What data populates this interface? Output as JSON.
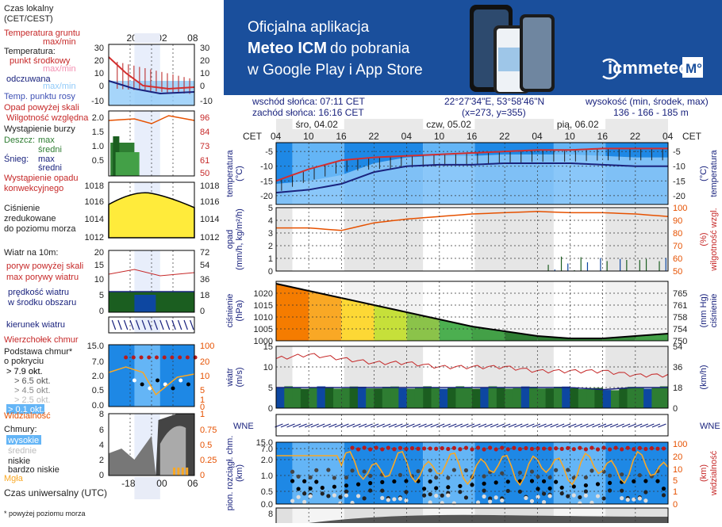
{
  "legend": {
    "time_local": "Czas lokalny",
    "time_local2": "(CET/CEST)",
    "ground_temp": "Temperatura gruntu",
    "ground_temp_maxmin": "max/min",
    "temperature": "Temperatura:",
    "dew_mid": "punkt środkowy",
    "maxmin": "max/min",
    "apparent": "odczuwana",
    "maxmin2": "max/min",
    "dew": "Temp. punktu rosy",
    "precip_above": "Opad powyżej skali",
    "humidity": "Wilgotność względna",
    "thunder": "Wystąpienie burzy",
    "rain": "Deszcz:",
    "rain_max": "max",
    "rain_mid": "średni",
    "snow": "Śnieg:",
    "snow_max": "max",
    "snow_mid": "średni",
    "precip_occ": "Wystąpienie opadu",
    "conv": "konwekcyjnego",
    "pressure1": "Ciśnienie",
    "pressure2": "zredukowane",
    "pressure3": "do poziomu morza",
    "wind10": "Wiatr na 10m:",
    "gust_above": "poryw powyżej skali",
    "gust_max": "max porywy wiatru",
    "wind_mean": "prędkość wiatru",
    "wind_mean2": "w środku obszaru",
    "wind_dir": "kierunek wiatru",
    "cloud_top": "Wierzchołek chmur",
    "cloud_base": "Podstawa chmur*",
    "cloud_base2": "o pokryciu",
    "okt79": "> 7.9 okt.",
    "okt65": "> 6.5 okt.",
    "okt45": "> 4.5 okt.",
    "okt25": "> 2.5 okt.",
    "okt01": "> 0.1 okt.",
    "visibility": "Widzialność",
    "clouds": "Chmury:",
    "high": "wysokie",
    "mid": "średnie",
    "low": "niskie",
    "very_low": "bardzo niskie",
    "fog": "Mgła",
    "utc": "Czas uniwersalny (UTC)",
    "footnote": "* powyżej poziomu morza",
    "ticks_top": [
      "20",
      "02",
      "08"
    ],
    "ticks_bottom": [
      "-18",
      "00",
      "06"
    ]
  },
  "banner": {
    "line1": "Oficjalna aplikacja",
    "line2a": "Meteo ICM",
    "line2b": " do pobrania",
    "line3": "w Google Play i App Store",
    "logo": "icmmeteo",
    "badge": "M°",
    "bg": "#1a4f9c"
  },
  "info": {
    "sunrise": "wschód słońca: 07:11 CET",
    "sunset": "zachód słońca: 16:16 CET",
    "coords": "22°27'34\"E, 53°58'46\"N",
    "grid": "(x=273,  y=355)",
    "elev_label": "wysokość (min, środek, max)",
    "elev": "136 - 166 - 185 m"
  },
  "axis": {
    "cet": "CET",
    "days": [
      "śro, 04.02",
      "czw, 05.02",
      "pią, 06.02"
    ],
    "hours": [
      "04",
      "10",
      "16",
      "22",
      "04",
      "10",
      "16",
      "22",
      "04",
      "10",
      "16",
      "22",
      "04"
    ]
  },
  "chart_data": [
    {
      "type": "line",
      "title": "",
      "ylabel": "temperatura (°C)",
      "ylim": [
        -23,
        -2
      ],
      "x_hours": [
        0,
        6,
        12,
        18,
        24,
        30,
        36,
        42,
        48,
        54,
        60,
        66,
        72
      ],
      "series": [
        {
          "name": "max",
          "values": [
            -15,
            -11,
            -8,
            -7,
            -6.5,
            -6,
            -5.5,
            -5,
            -4.5,
            -4.5,
            -4,
            -4,
            -4
          ]
        },
        {
          "name": "dew",
          "values": [
            -19,
            -18,
            -16,
            -12,
            -10,
            -9.5,
            -9.5,
            -9,
            -9,
            -9,
            -9.5,
            -10,
            -10
          ]
        }
      ]
    },
    {
      "type": "line",
      "title": "",
      "ylabel": "opad (mm/h, kg/m²/h)",
      "y2label": "wilgotność wzgl. (%)",
      "ylim": [
        0,
        5
      ],
      "y2lim": [
        50,
        100
      ],
      "humidity": [
        84,
        84,
        82,
        88,
        91,
        93,
        95,
        96,
        97,
        96,
        96,
        95,
        93
      ],
      "yticks": [
        "0",
        "1",
        "2",
        "3",
        "4",
        "5"
      ],
      "y2ticks": [
        "50",
        "60",
        "70",
        "80",
        "90",
        "100"
      ]
    },
    {
      "type": "area",
      "title": "",
      "ylabel": "ciśnienie (hPa)",
      "y2label": "(mm Hg) ciśnienie",
      "ylim": [
        1000,
        1025
      ],
      "values": [
        1024,
        1021,
        1018,
        1015,
        1012,
        1009,
        1006,
        1004,
        1002,
        1001,
        1001,
        1002,
        1003
      ],
      "yticks": [
        "1000",
        "1005",
        "1010",
        "1015",
        "1020"
      ],
      "y2ticks": [
        "750",
        "754",
        "758",
        "761",
        "765"
      ]
    },
    {
      "type": "area",
      "title": "",
      "ylabel": "wiatr (m/s)",
      "y2label": "(km/h)",
      "ylim": [
        0,
        15
      ],
      "gust": [
        12,
        13,
        12,
        11,
        11,
        10,
        10,
        10,
        9,
        9,
        9,
        8,
        8
      ],
      "mean": [
        5,
        5,
        5,
        5,
        5,
        5,
        5,
        5,
        5,
        5,
        4.5,
        5,
        5
      ],
      "yticks": [
        "0",
        "5",
        "10",
        "15"
      ],
      "y2ticks": [
        "0",
        "18",
        "36",
        "54"
      ]
    },
    {
      "type": "scatter",
      "title": "",
      "ylabel": "pion. rozciągł. chm. (km)",
      "y2label": "widzialność (km)",
      "yticks": [
        "0.0",
        "0.5",
        "1.0",
        "2.0",
        "7.0",
        "15.0"
      ],
      "y2ticks": [
        "0",
        "1",
        "5",
        "10",
        "20",
        "100"
      ]
    }
  ],
  "left_ticks": {
    "temp_l": [
      "30",
      "20",
      "10",
      "0",
      "-10"
    ],
    "temp_r": [
      "30",
      "20",
      "10",
      "0",
      "-10"
    ],
    "rain_l": [
      "2.0",
      "1.5",
      "1.0",
      "0.5"
    ],
    "rain_r": [
      "96",
      "84",
      "73",
      "61",
      "50"
    ],
    "pres_l": [
      "1018",
      "1016",
      "1014",
      "1012"
    ],
    "pres_r": [
      "1018",
      "1016",
      "1014",
      "1012"
    ],
    "wind_l": [
      "20",
      "15",
      "10",
      "5",
      "0"
    ],
    "wind_r": [
      "72",
      "54",
      "36",
      "18",
      "0"
    ],
    "cloud_l": [
      "15.0",
      "7.0",
      "2.0",
      "0.5",
      "0.0"
    ],
    "cloud_r": [
      "100",
      "20",
      "10",
      "5",
      "1",
      "0"
    ],
    "cl_l": [
      "8",
      "6",
      "4",
      "2",
      "0"
    ],
    "cl_r": [
      "1",
      "0.75",
      "0.5",
      "0.25",
      "0"
    ]
  }
}
